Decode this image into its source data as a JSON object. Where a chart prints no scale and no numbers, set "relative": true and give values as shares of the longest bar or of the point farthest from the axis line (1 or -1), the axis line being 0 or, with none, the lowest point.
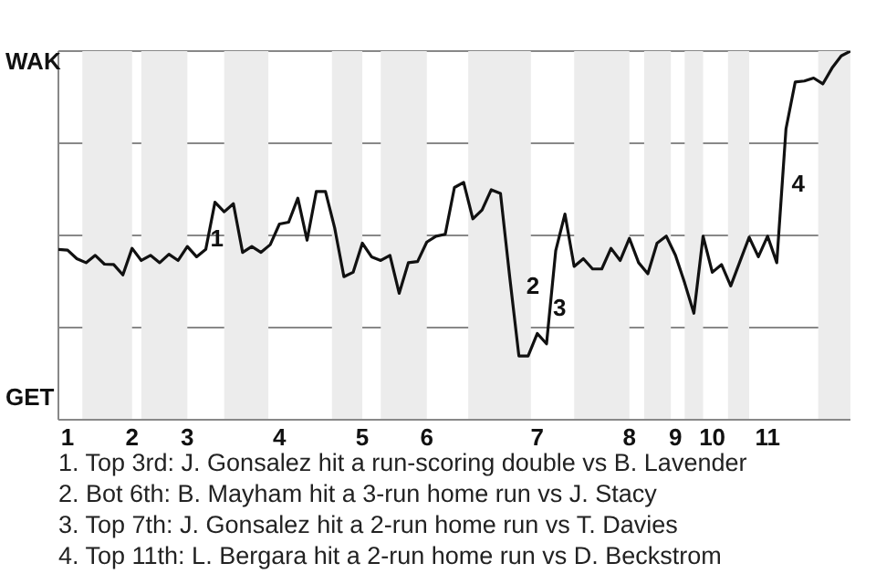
{
  "chart_data": {
    "type": "line",
    "relative": true,
    "categories": [
      null,
      "1",
      null,
      null,
      null,
      null,
      null,
      null,
      "2",
      null,
      null,
      null,
      null,
      null,
      "3",
      null,
      null,
      null,
      null,
      null,
      null,
      null,
      null,
      null,
      "4",
      null,
      null,
      null,
      null,
      null,
      null,
      null,
      null,
      "5",
      null,
      null,
      null,
      null,
      null,
      null,
      "6",
      null,
      null,
      null,
      null,
      null,
      null,
      null,
      null,
      null,
      null,
      null,
      "7",
      null,
      null,
      null,
      null,
      null,
      null,
      null,
      null,
      null,
      "8",
      null,
      null,
      null,
      null,
      "9",
      null,
      null,
      null,
      "10",
      null,
      null,
      null,
      null,
      null,
      "11",
      null,
      null,
      null,
      null,
      null,
      null,
      null,
      null,
      null
    ],
    "series": [
      {
        "color": "#111111",
        "values": [
          0.462,
          0.46,
          0.437,
          0.426,
          0.446,
          0.422,
          0.421,
          0.393,
          0.465,
          0.432,
          0.446,
          0.426,
          0.449,
          0.432,
          0.47,
          0.442,
          0.462,
          0.59,
          0.564,
          0.586,
          0.454,
          0.47,
          0.454,
          0.475,
          0.531,
          0.536,
          0.601,
          0.487,
          0.619,
          0.619,
          0.52,
          0.388,
          0.4,
          0.479,
          0.442,
          0.432,
          0.446,
          0.343,
          0.426,
          0.429,
          0.482,
          0.498,
          0.503,
          0.63,
          0.644,
          0.545,
          0.569,
          0.624,
          0.614,
          0.388,
          0.173,
          0.173,
          0.234,
          0.206,
          0.459,
          0.558,
          0.416,
          0.437,
          0.409,
          0.409,
          0.465,
          0.432,
          0.492,
          0.426,
          0.396,
          0.479,
          0.498,
          0.446,
          0.371,
          0.289,
          0.498,
          0.4,
          0.421,
          0.363,
          0.429,
          0.495,
          0.442,
          0.498,
          0.426,
          0.789,
          0.916,
          0.919,
          0.927,
          0.911,
          0.954,
          0.987,
          1
        ]
      }
    ],
    "grid": "y",
    "marker": "none",
    "line_style": "solid",
    "annotations": [
      "WAK",
      "GET",
      "1",
      "2",
      "3",
      "4",
      "1. Top 3rd: J. Gonsalez hit a run-scoring double vs B. Lavender",
      "2. Bot 6th: B. Mayham hit a 3-run home run vs J. Stacy",
      "3. Top 7th: J. Gonsalez hit a 2-run home run vs T. Davies",
      "4. Top 11th: L. Bergara hit a 2-run home run vs D. Beckstrom"
    ]
  }
}
